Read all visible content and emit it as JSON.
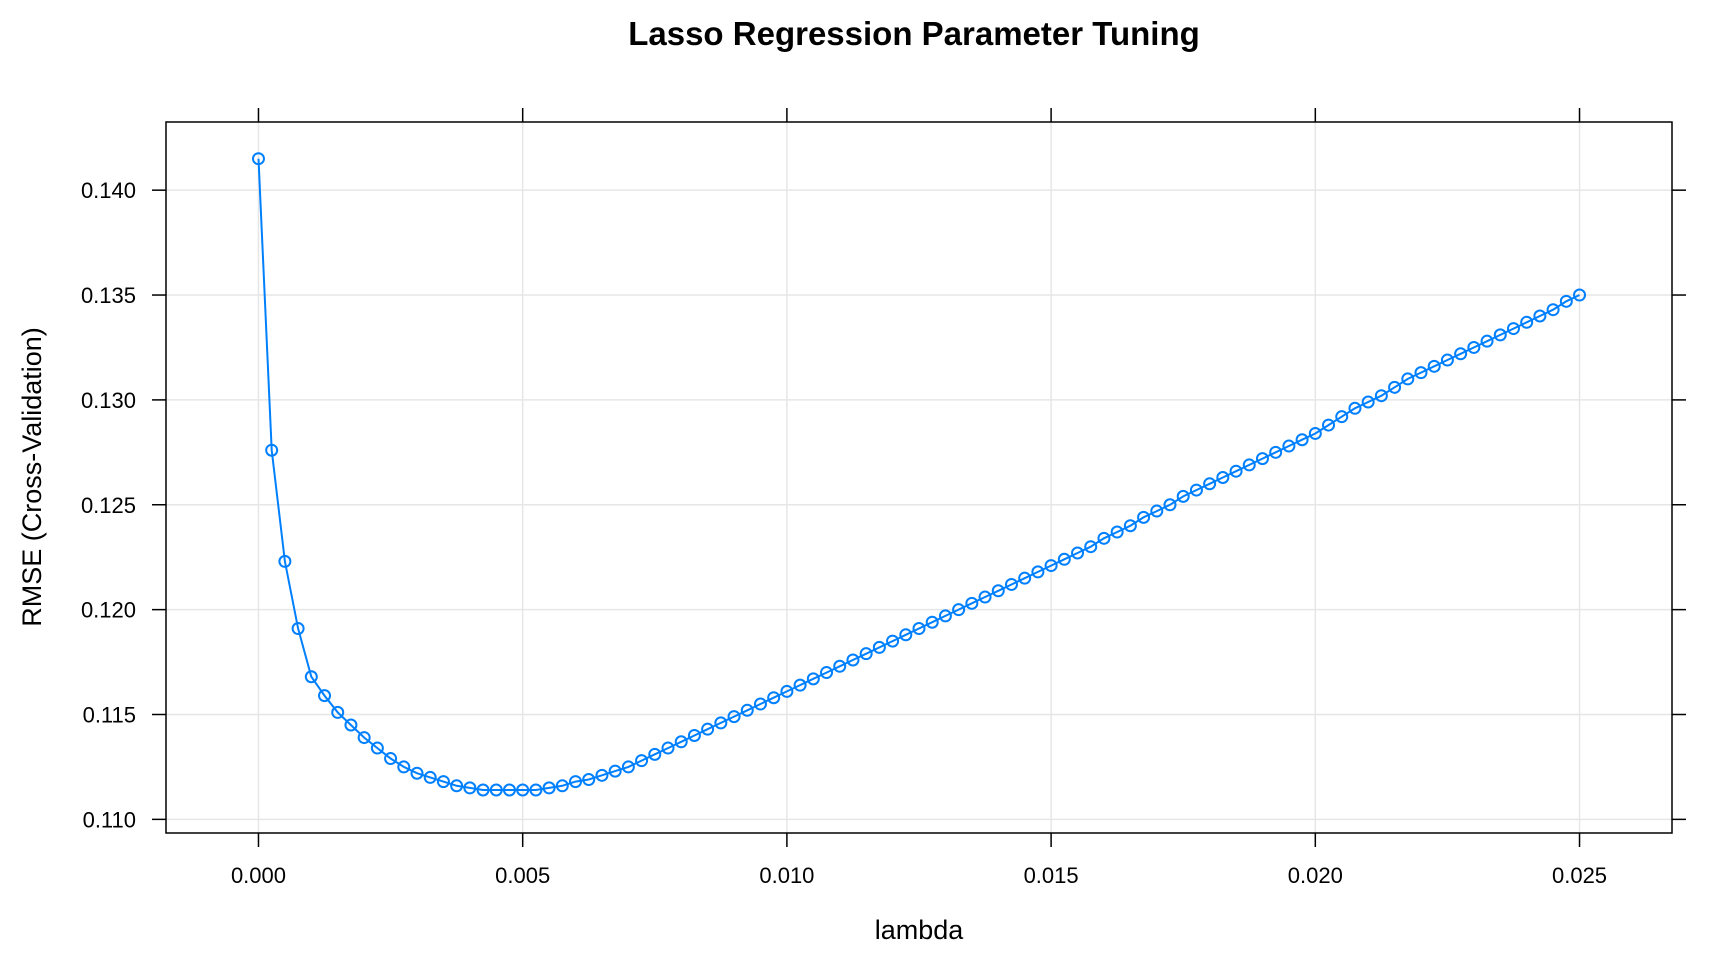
{
  "chart_data": {
    "type": "line",
    "title": "Lasso Regression Parameter Tuning",
    "xlabel": "lambda",
    "ylabel": "RMSE (Cross-Validation)",
    "xlim": [
      -0.00175,
      0.02675
    ],
    "ylim": [
      0.10935,
      0.14325
    ],
    "x_ticks": [
      0.0,
      0.005,
      0.01,
      0.015,
      0.02,
      0.025
    ],
    "x_tick_labels": [
      "0.000",
      "0.005",
      "0.010",
      "0.015",
      "0.020",
      "0.025"
    ],
    "y_ticks": [
      0.11,
      0.115,
      0.12,
      0.125,
      0.13,
      0.135,
      0.14
    ],
    "y_tick_labels": [
      "0.110",
      "0.115",
      "0.120",
      "0.125",
      "0.130",
      "0.135",
      "0.140"
    ],
    "grid": true,
    "series": [
      {
        "color": "#0080FF",
        "marker": "open-circle",
        "x": [
          0.0,
          0.00025,
          0.0005,
          0.00075,
          0.001,
          0.00125,
          0.0015,
          0.00175,
          0.002,
          0.00225,
          0.0025,
          0.00275,
          0.003,
          0.00325,
          0.0035,
          0.00375,
          0.004,
          0.00425,
          0.0045,
          0.00475,
          0.005,
          0.00525,
          0.0055,
          0.00575,
          0.006,
          0.00625,
          0.0065,
          0.00675,
          0.007,
          0.00725,
          0.0075,
          0.00775,
          0.008,
          0.00825,
          0.0085,
          0.00875,
          0.009,
          0.00925,
          0.0095,
          0.00975,
          0.01,
          0.01025,
          0.0105,
          0.01075,
          0.011,
          0.01125,
          0.0115,
          0.01175,
          0.012,
          0.01225,
          0.0125,
          0.01275,
          0.013,
          0.01325,
          0.0135,
          0.01375,
          0.014,
          0.01425,
          0.0145,
          0.01475,
          0.015,
          0.01525,
          0.0155,
          0.01575,
          0.016,
          0.01625,
          0.0165,
          0.01675,
          0.017,
          0.01725,
          0.0175,
          0.01775,
          0.018,
          0.01825,
          0.0185,
          0.01875,
          0.019,
          0.01925,
          0.0195,
          0.01975,
          0.02,
          0.02025,
          0.0205,
          0.02075,
          0.021,
          0.02125,
          0.0215,
          0.02175,
          0.022,
          0.02225,
          0.0225,
          0.02275,
          0.023,
          0.02325,
          0.0235,
          0.02375,
          0.024,
          0.02425,
          0.0245,
          0.02475,
          0.025
        ],
        "y": [
          0.1415,
          0.1276,
          0.1223,
          0.1191,
          0.1168,
          0.1159,
          0.1151,
          0.1145,
          0.1139,
          0.1134,
          0.1129,
          0.1125,
          0.1122,
          0.112,
          0.1118,
          0.1116,
          0.1115,
          0.1114,
          0.1114,
          0.1114,
          0.1114,
          0.1114,
          0.1115,
          0.1116,
          0.1118,
          0.1119,
          0.1121,
          0.1123,
          0.1125,
          0.1128,
          0.1131,
          0.1134,
          0.1137,
          0.114,
          0.1143,
          0.1146,
          0.1149,
          0.1152,
          0.1155,
          0.1158,
          0.1161,
          0.1164,
          0.1167,
          0.117,
          0.1173,
          0.1176,
          0.1179,
          0.1182,
          0.1185,
          0.1188,
          0.1191,
          0.1194,
          0.1197,
          0.12,
          0.1203,
          0.1206,
          0.1209,
          0.1212,
          0.1215,
          0.1218,
          0.1221,
          0.1224,
          0.1227,
          0.123,
          0.1234,
          0.1237,
          0.124,
          0.1244,
          0.1247,
          0.125,
          0.1254,
          0.1257,
          0.126,
          0.1263,
          0.1266,
          0.1269,
          0.1272,
          0.1275,
          0.1278,
          0.1281,
          0.1284,
          0.1288,
          0.1292,
          0.1296,
          0.1299,
          0.1302,
          0.1306,
          0.131,
          0.1313,
          0.1316,
          0.1319,
          0.1322,
          0.1325,
          0.1328,
          0.1331,
          0.1334,
          0.1337,
          0.134,
          0.1343,
          0.1347,
          0.135
        ]
      }
    ]
  }
}
